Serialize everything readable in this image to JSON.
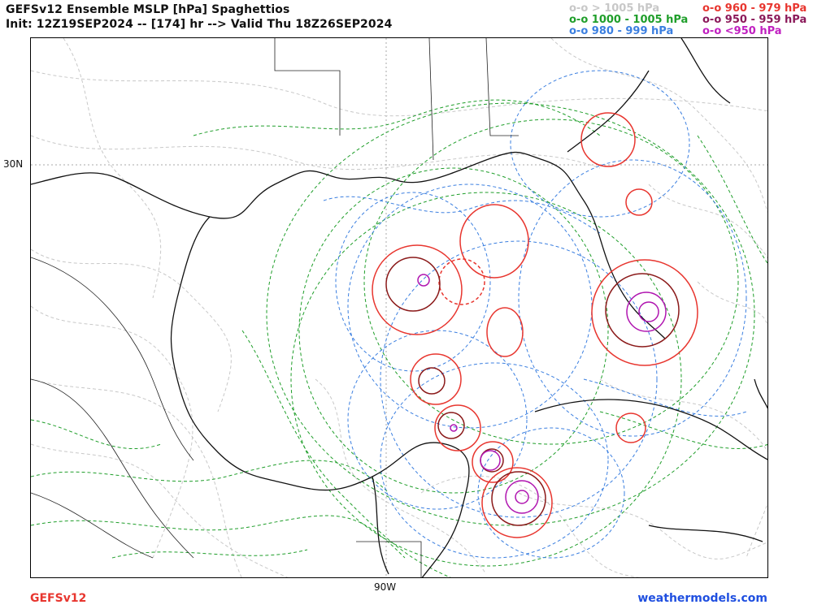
{
  "header": {
    "title_line1": "GEFSv12 Ensemble MSLP [hPa] Spaghettios",
    "title_line2": "Init: 12Z19SEP2024 -- [174] hr --> Valid Thu 18Z26SEP2024"
  },
  "legend": {
    "left": [
      {
        "text": "o-o > 1005 hPa",
        "color": "#c8c8c8"
      },
      {
        "text": "o-o 1000 - 1005 hPa",
        "color": "#1f9e2a"
      },
      {
        "text": "o-o 980 - 999 hPa",
        "color": "#3b7fe0"
      }
    ],
    "right": [
      {
        "text": "o-o 960 - 979 hPa",
        "color": "#e8362f"
      },
      {
        "text": "o-o 950 - 959 hPa",
        "color": "#8b1a5a"
      },
      {
        "text": "o-o <950 hPa",
        "color": "#c020c0"
      }
    ]
  },
  "axes": {
    "lat_label": "30N",
    "lon_label": "90W"
  },
  "footer": {
    "model": "GEFSv12",
    "site": "weathermodels.com"
  },
  "colors": {
    "gray": "#c8c8c8",
    "green": "#1f9e2a",
    "blue": "#3b7fe0",
    "red": "#e8362f",
    "darkred": "#8b1a1a",
    "purple": "#b015b0"
  }
}
